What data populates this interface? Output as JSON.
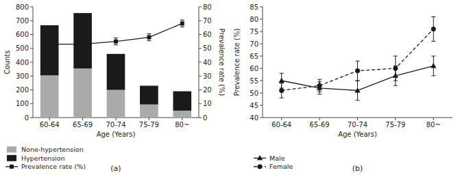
{
  "chart_data": [
    {
      "type": "bar",
      "title": "(a)",
      "stacked": true,
      "categories": [
        "60-64",
        "65-69",
        "70-74",
        "75-79",
        "80~"
      ],
      "x_label": "Age (Years)",
      "y_label": "Counts",
      "y2_label": "Prevalence rate (%)",
      "ylim": [
        0,
        800
      ],
      "yticks": [
        0,
        100,
        200,
        300,
        400,
        500,
        600,
        700,
        800
      ],
      "y2lim": [
        0,
        80
      ],
      "y2ticks": [
        0,
        10,
        20,
        30,
        40,
        50,
        60,
        70,
        80
      ],
      "grid": false,
      "legend": "bottom",
      "series": [
        {
          "name": "None-hypertension",
          "color": "#aaaaaa",
          "values": [
            305,
            355,
            200,
            95,
            50
          ]
        },
        {
          "name": "Hypertension",
          "color": "#1a1a1a",
          "values": [
            362,
            400,
            260,
            135,
            140
          ]
        },
        {
          "name": "Prevalence rate (%)",
          "type": "line",
          "axis": "y2",
          "color": "#1a1a1a",
          "marker": "square",
          "line_style": "solid",
          "values": [
            53,
            53,
            55,
            58,
            68
          ],
          "errors": [
            1.5,
            1.5,
            2.5,
            2.5,
            2.5
          ]
        }
      ]
    },
    {
      "type": "line",
      "title": "(b)",
      "categories": [
        "60-64",
        "65-69",
        "70-74",
        "75-79",
        "80~"
      ],
      "x_label": "Age (Years)",
      "y_label": "Prevalence rate (%)",
      "ylim": [
        40,
        85
      ],
      "yticks": [
        40,
        45,
        50,
        55,
        60,
        65,
        70,
        75,
        80,
        85
      ],
      "grid": false,
      "legend": "bottom",
      "series": [
        {
          "name": "Male",
          "color": "#1a1a1a",
          "marker": "triangle",
          "line_style": "solid",
          "values": [
            55,
            52,
            51,
            57,
            61
          ],
          "errors": [
            3,
            2.5,
            4,
            4,
            4
          ]
        },
        {
          "name": "Female",
          "color": "#1a1a1a",
          "marker": "circle",
          "line_style": "dashed",
          "values": [
            51,
            53,
            59,
            60,
            76
          ],
          "errors": [
            3,
            2.5,
            4,
            5,
            5
          ]
        }
      ]
    }
  ]
}
